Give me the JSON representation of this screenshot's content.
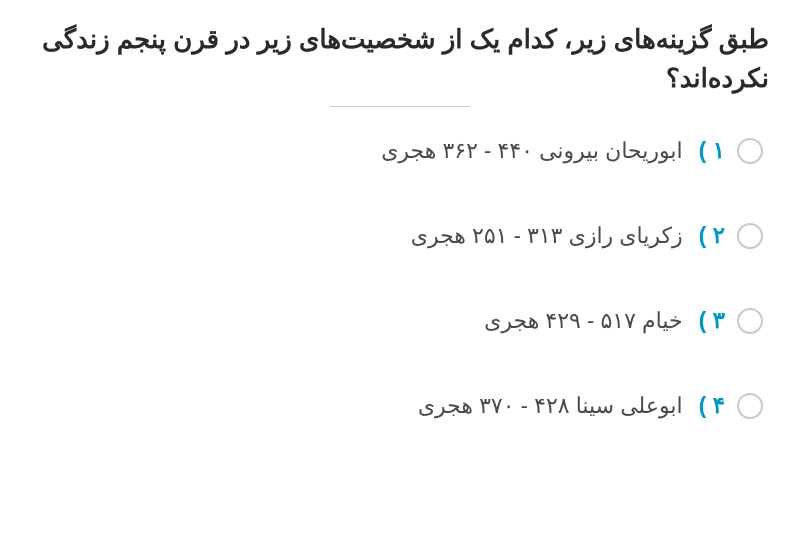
{
  "question": {
    "title": "طبق گزینه‌های زیر، کدام یک از شخصیت‌های زیر در قرن پنجم زندگی نکرده‌اند؟"
  },
  "options": [
    {
      "number": "۱ )",
      "text": "ابوریحان بیرونی ۴۴۰ - ۳۶۲ هجری"
    },
    {
      "number": "۲ )",
      "text": "زکریای رازی ۳۱۳ - ۲۵۱ هجری"
    },
    {
      "number": "۳ )",
      "text": "خیام ۵۱۷ - ۴۲۹ هجری"
    },
    {
      "number": "۴ )",
      "text": "ابوعلی سینا ۴۲۸ - ۳۷۰ هجری"
    }
  ],
  "colors": {
    "title": "#2a2a2a",
    "optionNumber": "#0097c2",
    "optionText": "#4a4a4a",
    "radioBorder": "#c9c9c9",
    "divider": "#d0d0d0",
    "background": "#ffffff"
  },
  "typography": {
    "titleFontSize": 26,
    "optionFontSize": 22,
    "numberFontSize": 23
  }
}
